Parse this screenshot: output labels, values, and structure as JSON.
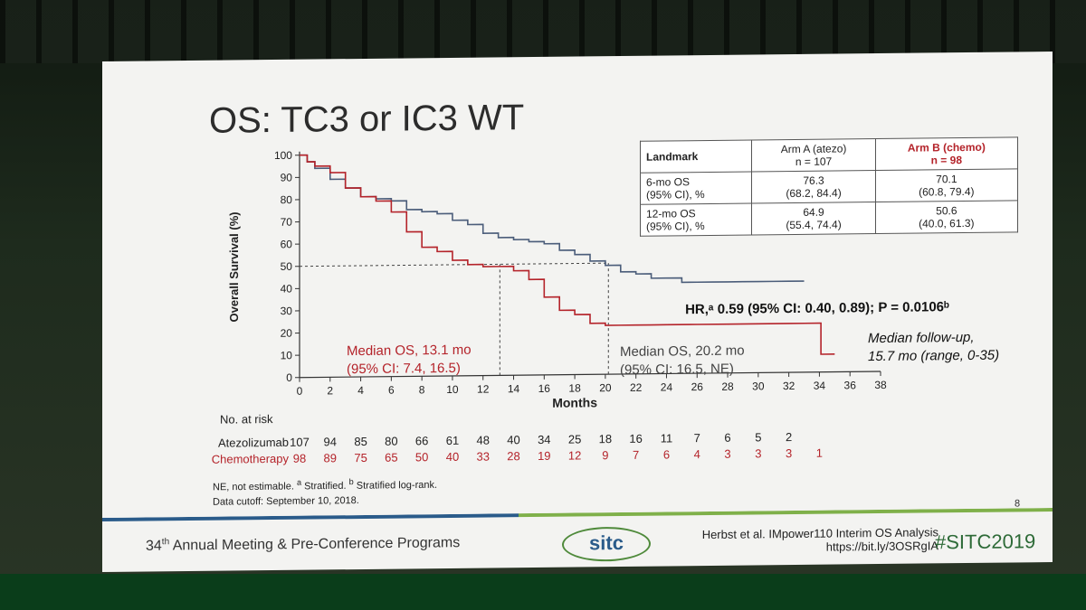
{
  "slide": {
    "title": "OS: TC3 or IC3 WT",
    "page_number": "8",
    "notes": [
      "NE, not estimable. ",
      "Stratified. ",
      "Stratified log-rank.",
      "Data cutoff: September 10, 2018."
    ],
    "notes_sup_a": "a",
    "notes_sup_b": "b"
  },
  "table": {
    "header": [
      "Landmark",
      "Arm A (atezo)",
      "n = 107",
      "Arm B (chemo)",
      "n = 98"
    ],
    "rows": [
      {
        "label1": "6-mo OS",
        "label2": "(95% CI), %",
        "a1": "76.3",
        "a2": "(68.2, 84.4)",
        "b1": "70.1",
        "b2": "(60.8, 79.4)"
      },
      {
        "label1": "12-mo OS",
        "label2": "(95% CI), %",
        "a1": "64.9",
        "a2": "(55.4, 74.4)",
        "b1": "50.6",
        "b2": "(40.0, 61.3)"
      }
    ]
  },
  "annotations": {
    "hr": "HR,ᵃ 0.59 (95% CI: 0.40, 0.89); P = 0.0106ᵇ",
    "median_chemo_1": "Median OS, 13.1 mo",
    "median_chemo_2": "(95% CI: 7.4, 16.5)",
    "median_atezo_1": "Median OS, 20.2 mo",
    "median_atezo_2": "(95% CI: 16.5, NE)",
    "followup_1": "Median follow-up,",
    "followup_2": "15.7 mo (range, 0-35)"
  },
  "risk": {
    "title": "No. at risk",
    "atezo_label": "Atezolizumab",
    "chemo_label": "Chemotherapy",
    "atezo": [
      "107",
      "94",
      "85",
      "80",
      "66",
      "61",
      "48",
      "40",
      "34",
      "25",
      "18",
      "16",
      "11",
      "7",
      "6",
      "5",
      "2"
    ],
    "chemo": [
      "98",
      "89",
      "75",
      "65",
      "50",
      "40",
      "33",
      "28",
      "19",
      "12",
      "9",
      "7",
      "6",
      "4",
      "3",
      "3",
      "3",
      "1"
    ]
  },
  "footer": {
    "meeting": "34",
    "meeting_sup": "th",
    "meeting_rest": " Annual Meeting & Pre-Conference Programs",
    "logo": "sitc",
    "cite1": "Herbst et al. IMpower110 Interim OS Analysis",
    "cite2": "https://bit.ly/3OSRgIA",
    "tag": "#SITC2019"
  },
  "colors": {
    "atezo": "#4b5d7a",
    "chemo": "#b4232a",
    "accent_green": "#4f8a3b",
    "blue": "#2a5b8a"
  },
  "chart_data": {
    "type": "line",
    "title": "OS: TC3 or IC3 WT",
    "xlabel": "Months",
    "ylabel": "Overall Survival (%)",
    "xlim": [
      0,
      38
    ],
    "ylim": [
      0,
      100
    ],
    "xticks": [
      "0",
      "2",
      "4",
      "6",
      "8",
      "10",
      "12",
      "14",
      "16",
      "18",
      "20",
      "22",
      "24",
      "26",
      "28",
      "30",
      "32",
      "34",
      "36",
      "38"
    ],
    "yticks": [
      "0",
      "10",
      "20",
      "30",
      "40",
      "50",
      "60",
      "70",
      "80",
      "90",
      "100"
    ],
    "series": [
      {
        "name": "Atezolizumab",
        "x": [
          0,
          0.5,
          1,
          2,
          3,
          4,
          5,
          6,
          7,
          8,
          9,
          10,
          11,
          12,
          13,
          14,
          15,
          16,
          17,
          18,
          19,
          20,
          21,
          22,
          23,
          24,
          25,
          26,
          27,
          28,
          29,
          30,
          31,
          32,
          33
        ],
        "y": [
          100,
          97,
          94,
          89,
          85,
          81,
          80,
          79,
          75,
          74,
          73,
          70,
          68,
          64,
          62,
          61,
          60,
          59,
          56,
          54,
          51,
          49,
          46,
          45,
          43,
          43,
          41,
          41,
          41,
          41,
          41,
          41,
          41,
          41,
          41
        ]
      },
      {
        "name": "Chemotherapy",
        "x": [
          0,
          0.5,
          1,
          2,
          3,
          4,
          5,
          6,
          7,
          8,
          9,
          10,
          11,
          12,
          13,
          14,
          15,
          16,
          17,
          18,
          19,
          20,
          21,
          22,
          23,
          24,
          26,
          28,
          30,
          32,
          34,
          34.1,
          35
        ],
        "y": [
          100,
          97,
          95,
          92,
          85,
          81,
          79,
          74,
          65,
          58,
          56,
          52,
          50,
          49,
          49,
          47,
          43,
          35,
          29,
          27,
          23,
          22,
          22,
          22,
          22,
          22,
          22,
          22,
          22,
          22,
          22,
          8,
          8
        ]
      }
    ],
    "medians": [
      {
        "name": "Chemotherapy",
        "x": 13.1,
        "y": 50
      },
      {
        "name": "Atezolizumab",
        "x": 20.2,
        "y": 50
      }
    ]
  }
}
